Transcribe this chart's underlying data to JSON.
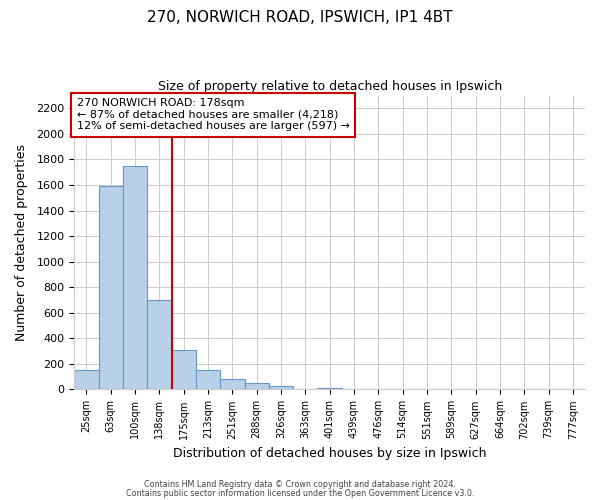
{
  "title": "270, NORWICH ROAD, IPSWICH, IP1 4BT",
  "subtitle": "Size of property relative to detached houses in Ipswich",
  "xlabel": "Distribution of detached houses by size in Ipswich",
  "ylabel": "Number of detached properties",
  "bar_labels": [
    "25sqm",
    "63sqm",
    "100sqm",
    "138sqm",
    "175sqm",
    "213sqm",
    "251sqm",
    "288sqm",
    "326sqm",
    "363sqm",
    "401sqm",
    "439sqm",
    "476sqm",
    "514sqm",
    "551sqm",
    "589sqm",
    "627sqm",
    "664sqm",
    "702sqm",
    "739sqm",
    "777sqm"
  ],
  "bar_values": [
    155,
    1590,
    1750,
    700,
    310,
    155,
    85,
    50,
    25,
    0,
    15,
    0,
    0,
    0,
    0,
    0,
    0,
    0,
    0,
    0,
    0
  ],
  "bar_color": "#b8d0e8",
  "bar_edge_color": "#6699cc",
  "vline_color": "#cc0000",
  "annotation_text": "270 NORWICH ROAD: 178sqm\n← 87% of detached houses are smaller (4,218)\n12% of semi-detached houses are larger (597) →",
  "annotation_box_color": "#ffffff",
  "annotation_box_edge_color": "#cc0000",
  "ylim": [
    0,
    2300
  ],
  "yticks": [
    0,
    200,
    400,
    600,
    800,
    1000,
    1200,
    1400,
    1600,
    1800,
    2000,
    2200
  ],
  "footer_line1": "Contains HM Land Registry data © Crown copyright and database right 2024.",
  "footer_line2": "Contains public sector information licensed under the Open Government Licence v3.0.",
  "bg_color": "#ffffff",
  "grid_color": "#cccccc"
}
